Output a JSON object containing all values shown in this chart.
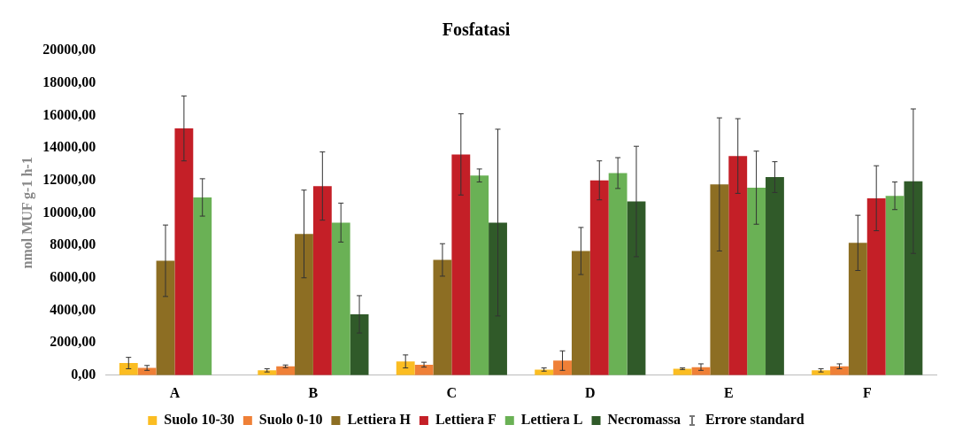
{
  "chart_data": {
    "type": "bar",
    "title": "Fosfatasi",
    "ylabel": "nmol MUF g-1 h-1",
    "categories": [
      "A",
      "B",
      "C",
      "D",
      "E",
      "F"
    ],
    "series": [
      {
        "name": "Suolo 10-30",
        "color": "#fbbd22",
        "values": [
          750,
          300,
          850,
          350,
          400,
          300
        ],
        "errors": [
          350,
          100,
          400,
          100,
          50,
          100
        ]
      },
      {
        "name": "Suolo 0-10",
        "color": "#ef8037",
        "values": [
          450,
          550,
          650,
          900,
          500,
          550
        ],
        "errors": [
          150,
          80,
          150,
          600,
          200,
          150
        ]
      },
      {
        "name": "Lettiera H",
        "color": "#8d6e23",
        "values": [
          7050,
          8700,
          7100,
          7650,
          11750,
          8150
        ],
        "errors": [
          2200,
          2700,
          1000,
          1450,
          4100,
          1700
        ]
      },
      {
        "name": "Lettiera F",
        "color": "#c41f27",
        "values": [
          15200,
          11650,
          13600,
          12000,
          13500,
          10900
        ],
        "errors": [
          2000,
          2100,
          2500,
          1200,
          2300,
          2000
        ]
      },
      {
        "name": "Lettiera L",
        "color": "#6ab155",
        "values": [
          10950,
          9400,
          12300,
          12450,
          11550,
          11050
        ],
        "errors": [
          1150,
          1200,
          400,
          950,
          2250,
          850
        ]
      },
      {
        "name": "Necromassa",
        "color": "#305a29",
        "values": [
          null,
          3750,
          9400,
          10700,
          12200,
          11950
        ],
        "errors": [
          null,
          1150,
          5750,
          3400,
          950,
          4450
        ]
      }
    ],
    "annotations": [
      "Errore standard"
    ],
    "ylim": [
      0,
      20000
    ],
    "yticks": [
      {
        "value": 0,
        "label": "0,00"
      },
      {
        "value": 2000,
        "label": "2000,00"
      },
      {
        "value": 4000,
        "label": "4000,00"
      },
      {
        "value": 6000,
        "label": "6000,00"
      },
      {
        "value": 8000,
        "label": "8000,00"
      },
      {
        "value": 10000,
        "label": "10000,00"
      },
      {
        "value": 12000,
        "label": "12000,00"
      },
      {
        "value": 14000,
        "label": "14000,00"
      },
      {
        "value": 16000,
        "label": "16000,00"
      },
      {
        "value": 18000,
        "label": "18000,00"
      },
      {
        "value": 20000,
        "label": "20000,00"
      }
    ],
    "grid": false,
    "legend": "bottom"
  }
}
